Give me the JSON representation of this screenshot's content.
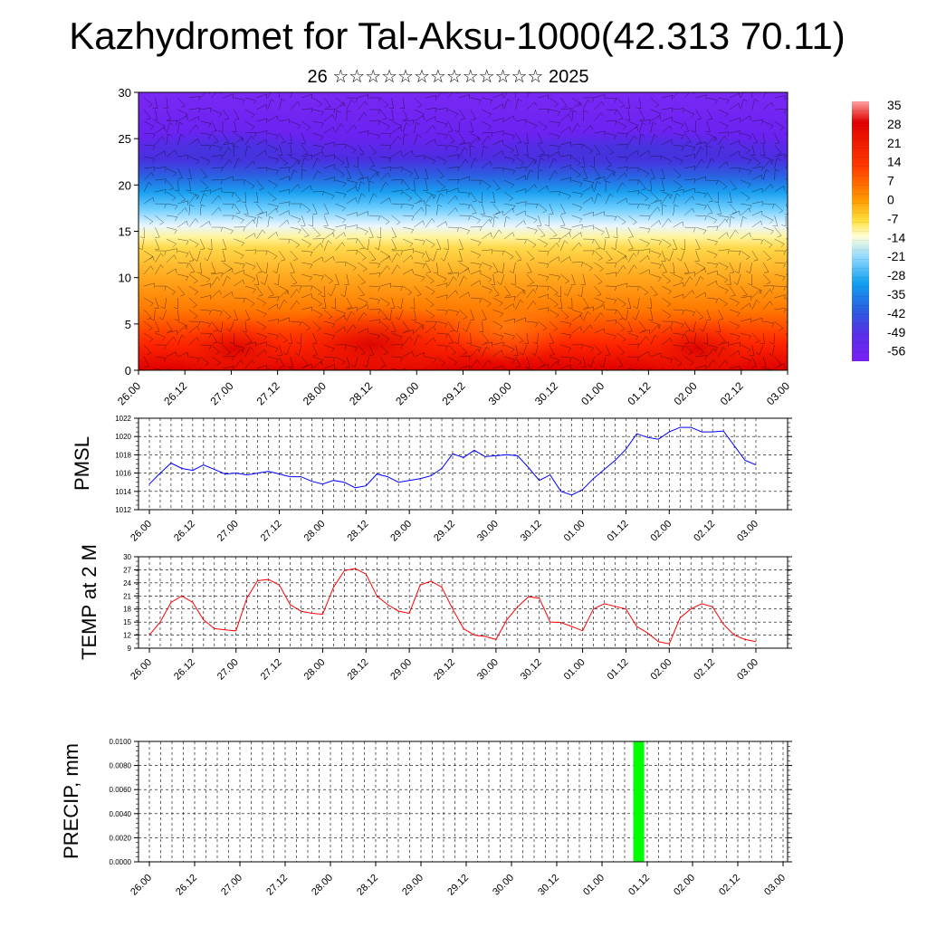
{
  "title": "Kazhydromet for Tal-Aksu-1000(42.313 70.11)",
  "subtitle": "26 ☆☆☆☆☆☆☆☆☆☆☆☆☆ 2025",
  "time_labels": [
    "26.00",
    "26.12",
    "27.00",
    "27.12",
    "28.00",
    "28.12",
    "29.00",
    "29.12",
    "30.00",
    "30.12",
    "01.00",
    "01.12",
    "02.00",
    "02.12",
    "03.00"
  ],
  "colorbar_labels": [
    "35",
    "28",
    "21",
    "14",
    "7",
    "0",
    "-7",
    "-14",
    "-21",
    "-28",
    "-35",
    "-42",
    "-49",
    "-56"
  ],
  "colors": {
    "pmsl_line": "#0000ff",
    "temp_line": "#ff0000",
    "precip_bar": "#00ff00",
    "colormap": [
      "#ff8080",
      "#e00000",
      "#ff4000",
      "#ff9000",
      "#ffcf40",
      "#fff080",
      "#ffffe0",
      "#c0e8ff",
      "#40c0ff",
      "#2080e0",
      "#6040e8",
      "#7020f0"
    ]
  },
  "chart_data": [
    {
      "type": "heatmap",
      "title": "",
      "xlabel": "",
      "ylabel": "",
      "x_categories": [
        "26.00",
        "26.12",
        "27.00",
        "27.12",
        "28.00",
        "28.12",
        "29.00",
        "29.12",
        "30.00",
        "30.12",
        "01.00",
        "01.12",
        "02.00",
        "02.12",
        "03.00"
      ],
      "y_ticks": [
        0,
        5,
        10,
        15,
        20,
        25,
        30
      ],
      "ylim": [
        0,
        30
      ],
      "colorbar_ticks": [
        35,
        28,
        21,
        14,
        7,
        0,
        -7,
        -14,
        -21,
        -28,
        -35,
        -42,
        -49,
        -56
      ],
      "profile_by_level": [
        {
          "level": 0,
          "value": 28
        },
        {
          "level": 3,
          "value": 24
        },
        {
          "level": 6,
          "value": 18
        },
        {
          "level": 9,
          "value": 12
        },
        {
          "level": 12,
          "value": 4
        },
        {
          "level": 15,
          "value": -10
        },
        {
          "level": 18,
          "value": -28
        },
        {
          "level": 21,
          "value": -42
        },
        {
          "level": 24,
          "value": -52
        },
        {
          "level": 27,
          "value": -55
        },
        {
          "level": 30,
          "value": -56
        }
      ],
      "overlay": "wind-barbs"
    },
    {
      "type": "line",
      "ylabel": "PMSL",
      "ylim": [
        1012,
        1022
      ],
      "y_ticks": [
        1012,
        1014,
        1016,
        1018,
        1020,
        1022
      ],
      "x": [
        "26.00",
        "26.03",
        "26.06",
        "26.09",
        "26.12",
        "26.15",
        "26.18",
        "26.21",
        "27.00",
        "27.03",
        "27.06",
        "27.09",
        "27.12",
        "27.15",
        "27.18",
        "27.21",
        "28.00",
        "28.03",
        "28.06",
        "28.09",
        "28.12",
        "28.15",
        "28.18",
        "28.21",
        "29.00",
        "29.03",
        "29.06",
        "29.09",
        "29.12",
        "29.15",
        "29.18",
        "29.21",
        "30.00",
        "30.03",
        "30.06",
        "30.09",
        "30.12",
        "30.15",
        "30.18",
        "30.21",
        "01.00",
        "01.03",
        "01.06",
        "01.09",
        "01.12",
        "01.15",
        "01.18",
        "01.21",
        "02.00",
        "02.03",
        "02.06",
        "02.09",
        "02.12",
        "02.15",
        "02.18",
        "02.21",
        "03.00"
      ],
      "series": [
        {
          "values": [
            1014.8,
            1016.0,
            1017.1,
            1016.5,
            1016.3,
            1016.9,
            1016.4,
            1015.9,
            1016.0,
            1015.8,
            1016.0,
            1016.2,
            1015.9,
            1015.6,
            1015.6,
            1015.1,
            1014.8,
            1015.2,
            1015.0,
            1014.4,
            1014.6,
            1015.9,
            1015.6,
            1015.0,
            1015.2,
            1015.4,
            1015.7,
            1016.5,
            1018.1,
            1017.7,
            1018.5,
            1017.8,
            1017.9,
            1018.0,
            1017.9,
            1016.6,
            1015.2,
            1015.8,
            1014.0,
            1013.6,
            1014.2,
            1015.4,
            1016.4,
            1017.4,
            1018.6,
            1020.3,
            1019.9,
            1019.7,
            1020.5,
            1021.0,
            1021.0,
            1020.5,
            1020.5,
            1020.6,
            1019.0,
            1017.4,
            1016.9
          ]
        }
      ]
    },
    {
      "type": "line",
      "ylabel": "TEMP at 2 M",
      "ylim": [
        9,
        30
      ],
      "y_ticks": [
        9,
        12,
        15,
        18,
        21,
        24,
        27,
        30
      ],
      "x": [
        "26.00",
        "26.03",
        "26.06",
        "26.09",
        "26.12",
        "26.15",
        "26.18",
        "26.21",
        "27.00",
        "27.03",
        "27.06",
        "27.09",
        "27.12",
        "27.15",
        "27.18",
        "27.21",
        "28.00",
        "28.03",
        "28.06",
        "28.09",
        "28.12",
        "28.15",
        "28.18",
        "28.21",
        "29.00",
        "29.03",
        "29.06",
        "29.09",
        "29.12",
        "29.15",
        "29.18",
        "29.21",
        "30.00",
        "30.03",
        "30.06",
        "30.09",
        "30.12",
        "30.15",
        "30.18",
        "30.21",
        "01.00",
        "01.03",
        "01.06",
        "01.09",
        "01.12",
        "01.15",
        "01.18",
        "01.21",
        "02.00",
        "02.03",
        "02.06",
        "02.09",
        "02.12",
        "02.15",
        "02.18",
        "02.21",
        "03.00"
      ],
      "series": [
        {
          "values": [
            12.0,
            15.0,
            19.5,
            21.0,
            19.5,
            15.5,
            13.5,
            13.2,
            13.0,
            20.5,
            24.5,
            24.8,
            23.5,
            19.0,
            17.5,
            17.0,
            16.8,
            23.0,
            26.8,
            27.3,
            26.0,
            21.0,
            19.0,
            17.5,
            17.0,
            23.5,
            24.4,
            23.0,
            18.0,
            13.5,
            12.0,
            11.7,
            11.0,
            15.5,
            18.5,
            20.8,
            20.5,
            15.0,
            14.9,
            14.0,
            13.0,
            18.0,
            19.2,
            18.6,
            18.0,
            14.0,
            12.5,
            10.5,
            10.0,
            16.0,
            18.0,
            19.2,
            18.5,
            14.5,
            12.0,
            11.0,
            10.5
          ]
        }
      ]
    },
    {
      "type": "bar",
      "ylabel": "PRECIP, mm",
      "ylim": [
        0,
        0.01
      ],
      "y_ticks": [
        "0.0000",
        "0.0020",
        "0.0040",
        "0.0060",
        "0.0080",
        "0.0100"
      ],
      "x_categories": [
        "26.00",
        "26.12",
        "27.00",
        "27.12",
        "28.00",
        "28.12",
        "29.00",
        "29.12",
        "30.00",
        "30.12",
        "01.00",
        "01.12",
        "02.00",
        "02.12",
        "03.00"
      ],
      "bars": [
        {
          "x": "01.09",
          "value": 0.01
        }
      ]
    }
  ]
}
